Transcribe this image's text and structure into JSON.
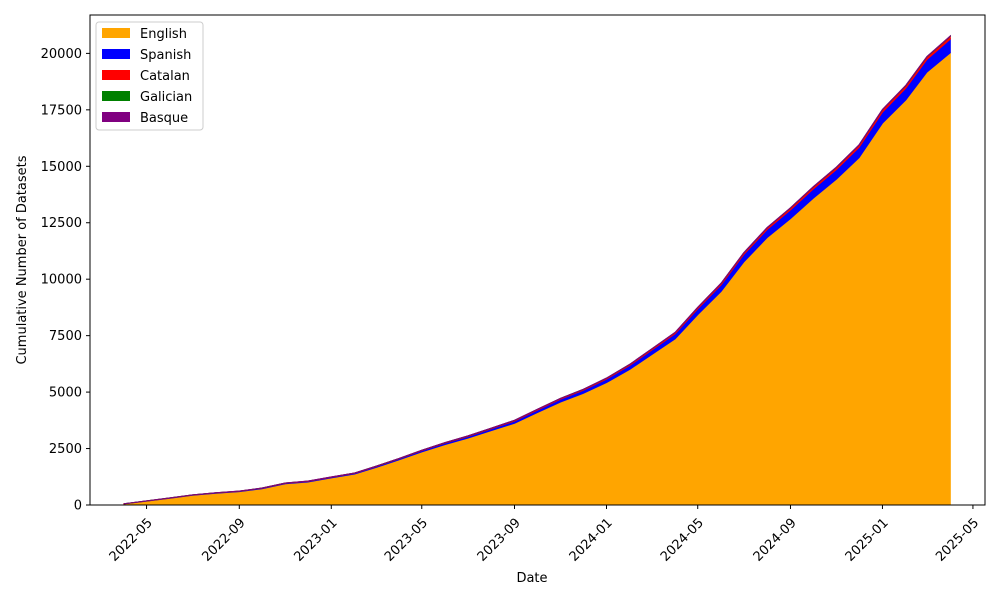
{
  "chart_data": {
    "type": "area",
    "stacked": true,
    "xlabel": "Date",
    "ylabel": "Cumulative Number of Datasets",
    "x": [
      "2022-04-01",
      "2022-05-01",
      "2022-06-01",
      "2022-07-01",
      "2022-08-01",
      "2022-09-01",
      "2022-10-01",
      "2022-11-01",
      "2022-12-01",
      "2023-01-01",
      "2023-02-01",
      "2023-03-01",
      "2023-04-01",
      "2023-05-01",
      "2023-06-01",
      "2023-07-01",
      "2023-08-01",
      "2023-09-01",
      "2023-10-01",
      "2023-11-01",
      "2023-12-01",
      "2024-01-01",
      "2024-02-01",
      "2024-03-01",
      "2024-04-01",
      "2024-05-01",
      "2024-06-01",
      "2024-07-01",
      "2024-08-01",
      "2024-09-01",
      "2024-10-01",
      "2024-11-01",
      "2024-12-01",
      "2025-01-01",
      "2025-02-01",
      "2025-03-01",
      "2025-04-01"
    ],
    "series": [
      {
        "name": "English",
        "color": "#FFA500",
        "values": [
          50,
          170,
          300,
          430,
          520,
          590,
          720,
          940,
          1020,
          1200,
          1370,
          1660,
          2000,
          2350,
          2680,
          2960,
          3290,
          3620,
          4090,
          4560,
          4940,
          5420,
          6010,
          6660,
          7360,
          8430,
          9460,
          10760,
          11840,
          12680,
          13580,
          14430,
          15380,
          16910,
          17940,
          19170,
          20030
        ]
      },
      {
        "name": "Spanish",
        "color": "#0000FF",
        "values": [
          5,
          8,
          10,
          15,
          18,
          20,
          22,
          25,
          28,
          30,
          35,
          40,
          45,
          55,
          65,
          75,
          85,
          100,
          110,
          125,
          140,
          155,
          175,
          200,
          225,
          260,
          290,
          330,
          360,
          390,
          410,
          430,
          460,
          490,
          520,
          560,
          600
        ]
      },
      {
        "name": "Catalan",
        "color": "#FF0000",
        "values": [
          2,
          3,
          4,
          5,
          6,
          7,
          8,
          9,
          10,
          11,
          12,
          13,
          15,
          17,
          19,
          21,
          24,
          27,
          30,
          33,
          36,
          40,
          44,
          48,
          52,
          58,
          64,
          70,
          76,
          82,
          88,
          94,
          100,
          106,
          112,
          118,
          125
        ]
      },
      {
        "name": "Galician",
        "color": "#008000",
        "values": [
          0,
          0,
          0,
          0,
          0,
          0,
          1,
          1,
          1,
          1,
          1,
          2,
          2,
          2,
          2,
          3,
          3,
          3,
          3,
          4,
          4,
          4,
          5,
          5,
          5,
          6,
          6,
          6,
          7,
          7,
          7,
          8,
          8,
          8,
          9,
          9,
          10
        ]
      },
      {
        "name": "Basque",
        "color": "#800080",
        "values": [
          0,
          0,
          1,
          1,
          1,
          1,
          1,
          1,
          2,
          2,
          2,
          2,
          2,
          3,
          3,
          3,
          3,
          4,
          4,
          4,
          4,
          5,
          5,
          5,
          6,
          6,
          6,
          7,
          7,
          7,
          8,
          8,
          8,
          9,
          9,
          9,
          10
        ]
      }
    ],
    "x_ticks": [
      "2022-05",
      "2022-09",
      "2023-01",
      "2023-05",
      "2023-09",
      "2024-01",
      "2024-05",
      "2024-09",
      "2025-01",
      "2025-05"
    ],
    "ylim": [
      0,
      21700
    ],
    "y_ticks": [
      0,
      2500,
      5000,
      7500,
      10000,
      12500,
      15000,
      17500,
      20000
    ],
    "xlim": [
      "2022-02-15",
      "2025-05-17"
    ],
    "legend": "top-left",
    "grid": false
  }
}
